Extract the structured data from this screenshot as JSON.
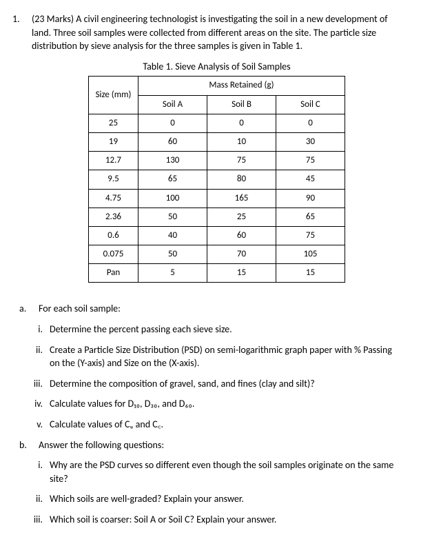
{
  "question": {
    "number": "1.",
    "marks": "(23 Marks)",
    "intro": "A civil engineering technologist is investigating the soil in a new development of land.  Three soil samples were collected from different areas on the site. The particle size distribution by sieve analysis for the three samples is given in Table 1."
  },
  "table": {
    "title": "Table 1. Sieve Analysis of Soil Samples",
    "header_size": "Size (mm)",
    "header_mass": "Mass Retained (g)",
    "col_a": "Soil A",
    "col_b": "Soil B",
    "col_c": "Soil C",
    "rows": [
      {
        "size": "25",
        "a": "0",
        "b": "0",
        "c": "0"
      },
      {
        "size": "19",
        "a": "60",
        "b": "10",
        "c": "30"
      },
      {
        "size": "12.7",
        "a": "130",
        "b": "75",
        "c": "75"
      },
      {
        "size": "9.5",
        "a": "65",
        "b": "80",
        "c": "45"
      },
      {
        "size": "4.75",
        "a": "100",
        "b": "165",
        "c": "90"
      },
      {
        "size": "2.36",
        "a": "50",
        "b": "25",
        "c": "65"
      },
      {
        "size": "0.6",
        "a": "40",
        "b": "60",
        "c": "75"
      },
      {
        "size": "0.075",
        "a": "50",
        "b": "70",
        "c": "105"
      },
      {
        "size": "Pan",
        "a": "5",
        "b": "15",
        "c": "15"
      }
    ]
  },
  "part_a": {
    "label": "a.",
    "lead": "For each soil sample:",
    "items": [
      {
        "n": "i.",
        "t": "Determine the percent passing each sieve size."
      },
      {
        "n": "ii.",
        "t": "Create a Particle Size Distribution (PSD) on semi-logarithmic graph paper with % Passing on the (Y-axis) and Size on the (X-axis)."
      },
      {
        "n": "iii.",
        "t": "Determine the composition of gravel, sand, and fines (clay and silt)?"
      },
      {
        "n": "iv.",
        "t": "Calculate values for D₁₀, D₃₀, and D₆₀."
      },
      {
        "n": "v.",
        "t": "Calculate values of Cᵤ and C꜀."
      }
    ]
  },
  "part_b": {
    "label": "b.",
    "lead": "Answer the following questions:",
    "items": [
      {
        "n": "i.",
        "t": "Why are the PSD curves so different even though the soil samples originate on the same site?"
      },
      {
        "n": "ii.",
        "t": "Which soils are well-graded?  Explain your answer."
      },
      {
        "n": "iii.",
        "t": "Which soil is coarser: Soil A or Soil C?  Explain your answer."
      }
    ]
  }
}
